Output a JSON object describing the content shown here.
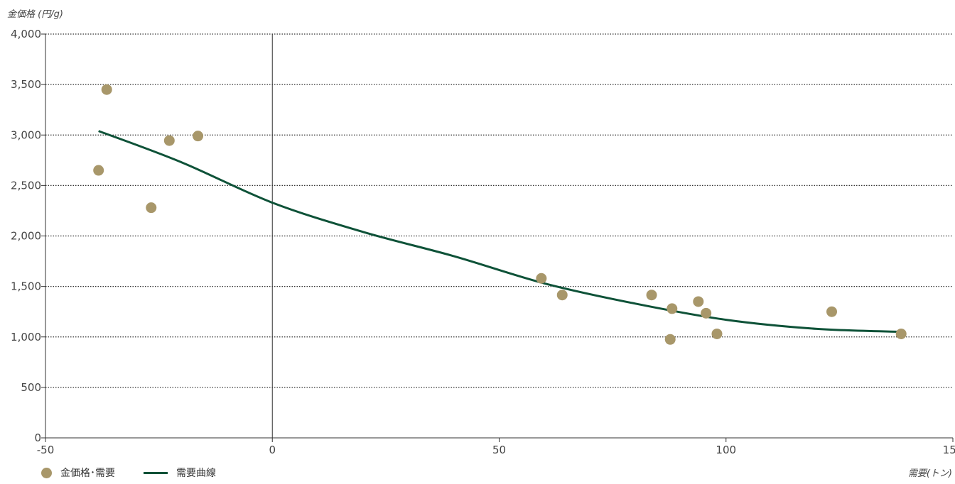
{
  "chart_data": {
    "type": "scatter",
    "ylabel": "金価格 (円/g)",
    "xlabel": "需要(トン)",
    "xlim": [
      -50,
      150
    ],
    "ylim": [
      0,
      4000
    ],
    "x_ticks": [
      -50,
      0,
      50,
      100,
      150
    ],
    "y_ticks": [
      0,
      500,
      1000,
      1500,
      2000,
      2500,
      3000,
      3500,
      4000
    ],
    "x_tick_labels": [
      "-50",
      "0",
      "50",
      "100",
      "150"
    ],
    "y_tick_labels": [
      "0",
      "500",
      "1,000",
      "1,500",
      "2,000",
      "2,500",
      "3,000",
      "3,500",
      "4,000"
    ],
    "grid": "horizontal dotted",
    "legend_position": "bottom-left",
    "series": [
      {
        "name": "金価格･需要",
        "kind": "scatter",
        "color": "#a8976a",
        "points": [
          {
            "x": -36.5,
            "y": 3450
          },
          {
            "x": -38.3,
            "y": 2650
          },
          {
            "x": -26.7,
            "y": 2280
          },
          {
            "x": -22.7,
            "y": 2945
          },
          {
            "x": -16.4,
            "y": 2990
          },
          {
            "x": 59.3,
            "y": 1580
          },
          {
            "x": 63.9,
            "y": 1415
          },
          {
            "x": 83.6,
            "y": 1415
          },
          {
            "x": 87.7,
            "y": 975
          },
          {
            "x": 88.1,
            "y": 1280
          },
          {
            "x": 93.9,
            "y": 1350
          },
          {
            "x": 95.6,
            "y": 1235
          },
          {
            "x": 98.0,
            "y": 1030
          },
          {
            "x": 123.3,
            "y": 1250
          },
          {
            "x": 138.6,
            "y": 1030
          }
        ]
      },
      {
        "name": "需要曲線",
        "kind": "line",
        "color": "#0e5238",
        "points": [
          {
            "x": -38.3,
            "y": 3040
          },
          {
            "x": -20,
            "y": 2730
          },
          {
            "x": 0,
            "y": 2330
          },
          {
            "x": 20,
            "y": 2040
          },
          {
            "x": 40,
            "y": 1800
          },
          {
            "x": 60,
            "y": 1530
          },
          {
            "x": 80,
            "y": 1330
          },
          {
            "x": 100,
            "y": 1170
          },
          {
            "x": 120,
            "y": 1080
          },
          {
            "x": 138.6,
            "y": 1050
          }
        ]
      }
    ]
  }
}
